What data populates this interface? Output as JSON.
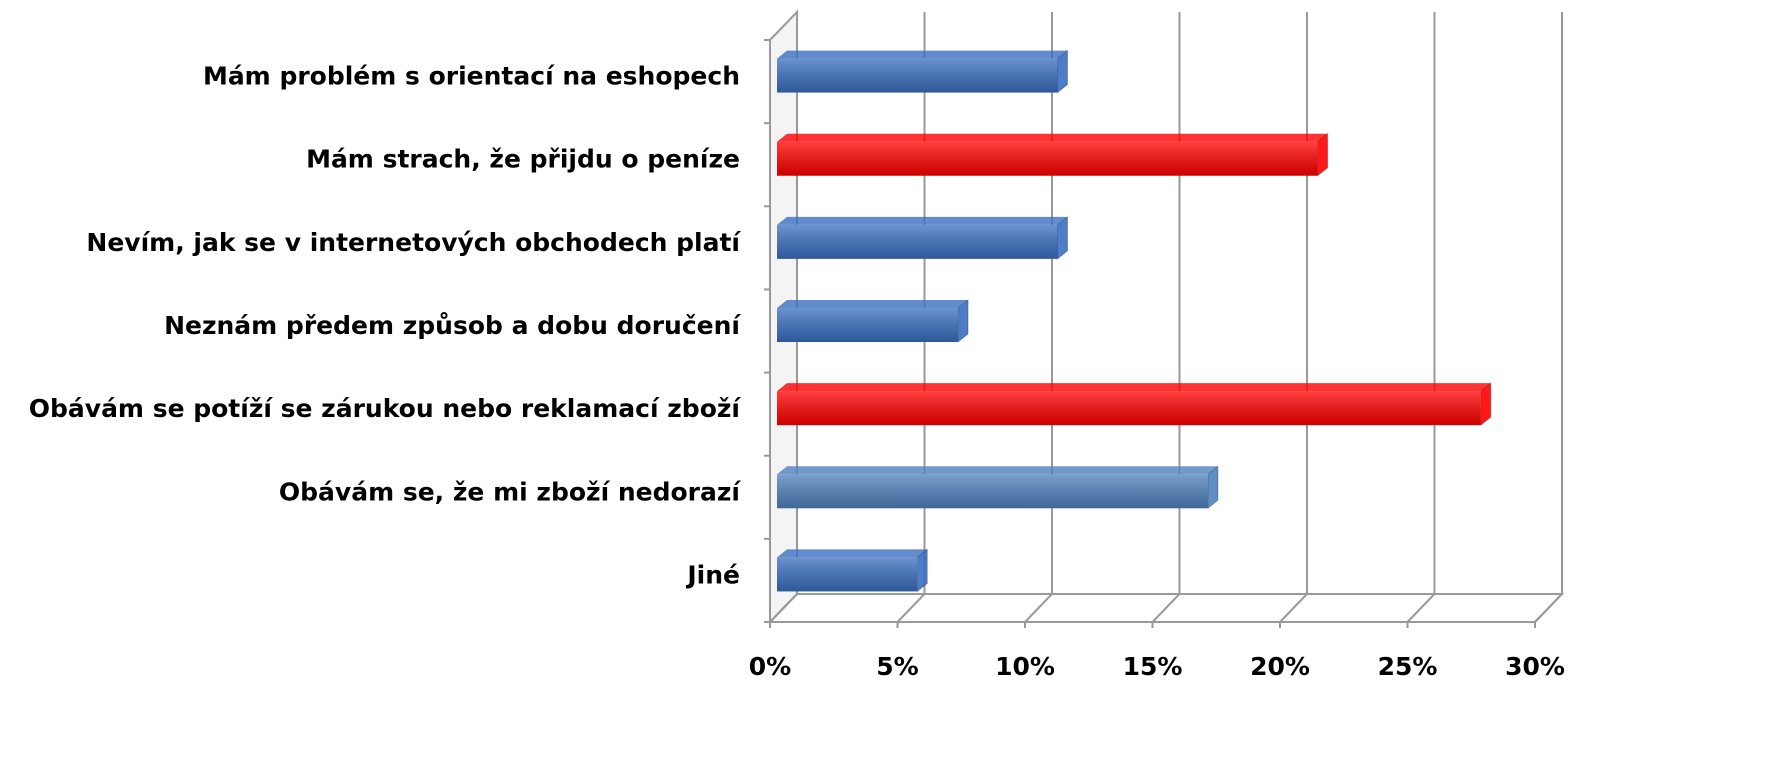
{
  "chart_data": {
    "type": "bar",
    "orientation": "horizontal",
    "categories": [
      "Mám problém s orientací na eshopech",
      "Mám strach, že přijdu o peníze",
      "Nevím, jak se v internetových obchodech platí",
      "Neznám předem způsob a dobu doručení",
      "Obávám se potíží se zárukou nebo reklamací zboží",
      "Obávám se, že mi zboží nedorazí",
      "Jiné"
    ],
    "values": [
      11,
      21.2,
      11,
      7.1,
      27.6,
      16.9,
      5.5
    ],
    "colors": [
      "#3a6fc0",
      "#ff0000",
      "#3a6fc0",
      "#3a6fc0",
      "#ff0000",
      "#4f81bd",
      "#3a6fc0"
    ],
    "xlim": [
      0,
      30
    ],
    "xticks": [
      {
        "value": 0,
        "label": "0%"
      },
      {
        "value": 5,
        "label": "5%"
      },
      {
        "value": 10,
        "label": "10%"
      },
      {
        "value": 15,
        "label": "15%"
      },
      {
        "value": 20,
        "label": "20%"
      },
      {
        "value": 25,
        "label": "25%"
      },
      {
        "value": 30,
        "label": "30%"
      }
    ],
    "grid": true
  }
}
